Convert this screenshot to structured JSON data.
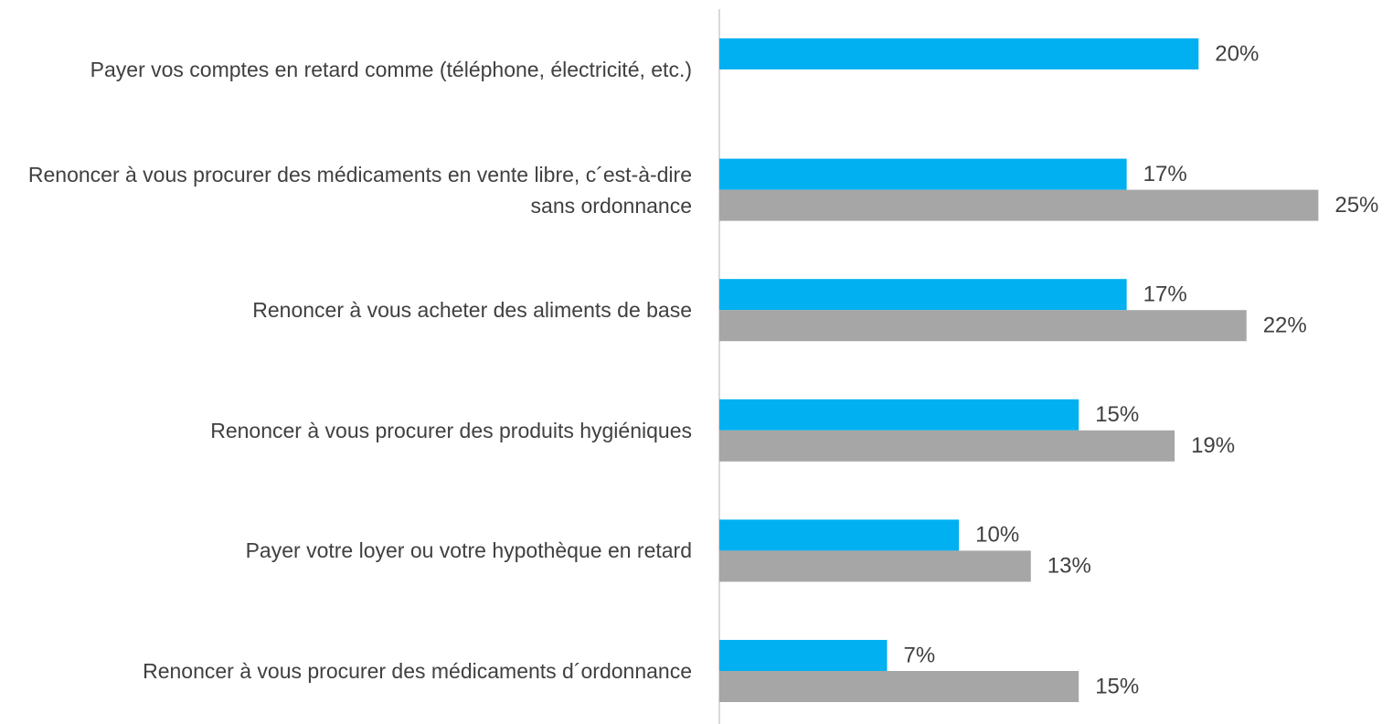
{
  "chart_data": {
    "type": "hbar",
    "categories": [
      "Payer vos comptes en retard comme (téléphone, électricité, etc.)",
      "Renoncer à vous procurer des médicaments en vente libre, c´est-à-dire sans ordonnance",
      "Renoncer à vous acheter des aliments de base",
      "Renoncer à vous procurer des produits hygiéniques",
      "Payer votre loyer ou votre hypothèque en retard",
      "Renoncer à vous procurer des médicaments d´ordonnance"
    ],
    "series": [
      {
        "color": "#00b0f0",
        "values": [
          20,
          17,
          17,
          15,
          10,
          7
        ],
        "value_labels": [
          "20%",
          "17%",
          "17%",
          "15%",
          "10%",
          "7%"
        ]
      },
      {
        "color": "#a6a6a6",
        "values": [
          null,
          25,
          22,
          19,
          13,
          15
        ],
        "value_labels": [
          null,
          "25%",
          "22%",
          "19%",
          "13%",
          "15%"
        ]
      }
    ],
    "xlim": [
      0,
      28
    ]
  }
}
